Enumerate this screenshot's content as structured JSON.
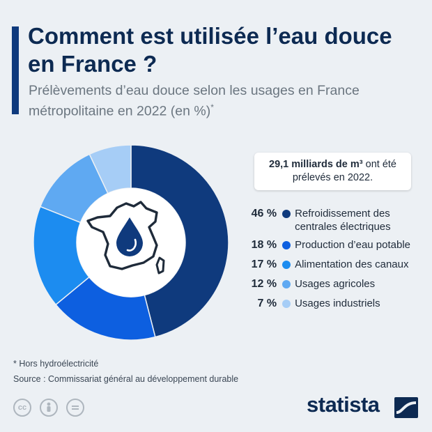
{
  "header": {
    "title": "Comment est utilisée l’eau douce en France ?",
    "subtitle": "Prélèvements d’eau douce selon les usages en France métropolitaine en 2022 (en %)",
    "subtitle_mark": "*"
  },
  "callout": {
    "bold": "29,1 milliards de m³",
    "rest": " ont été prélevés en 2022."
  },
  "chart_data": {
    "type": "pie",
    "donut": true,
    "categories": [
      "Refroidissement des centrales électriques",
      "Production d’eau potable",
      "Alimentation des canaux",
      "Usages agricoles",
      "Usages industriels"
    ],
    "values": [
      46,
      18,
      17,
      12,
      7
    ],
    "value_labels": [
      "46 %",
      "18 %",
      "17 %",
      "12 %",
      "7 %"
    ],
    "colors": [
      "#0f3a7d",
      "#0d5fe0",
      "#1c8cf0",
      "#5fa9f2",
      "#a6cdf6"
    ],
    "center_icon": "france-map-with-water-drop-icon",
    "legend_position": "right"
  },
  "footer": {
    "footnote": "* Hors hydroélectricité",
    "source": "Source : Commissariat général au développement durable",
    "license_icons": [
      "cc-icon",
      "person-icon",
      "equals-icon"
    ],
    "brand": "statista"
  }
}
